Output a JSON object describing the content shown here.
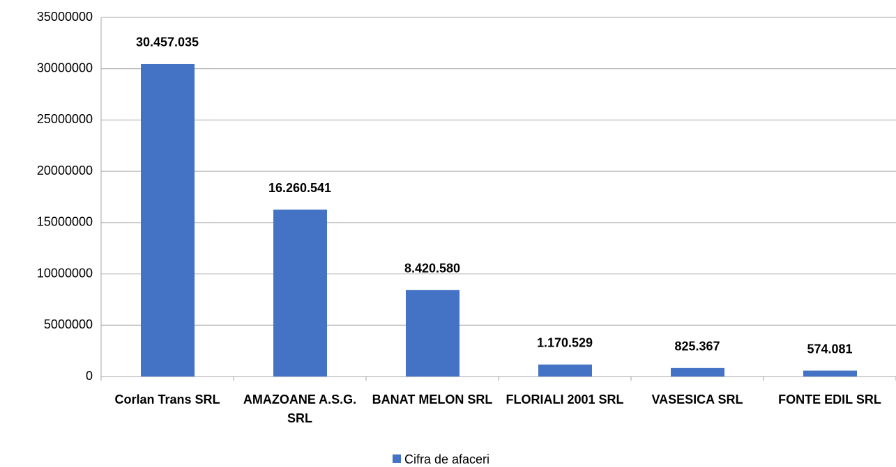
{
  "chart_data": {
    "type": "bar",
    "categories": [
      "Corlan Trans SRL",
      "AMAZOANE A.S.G. SRL",
      "BANAT MELON SRL",
      "FLORIALI 2001 SRL",
      "VASESICA SRL",
      "FONTE EDIL SRL"
    ],
    "series": [
      {
        "name": "Cifra de afaceri",
        "color": "#4472c4",
        "values": [
          30457035,
          16260541,
          8420580,
          1170529,
          825367,
          574081
        ],
        "value_labels": [
          "30.457.035",
          "16.260.541",
          "8.420.580",
          "1.170.529",
          "825.367",
          "574.081"
        ]
      }
    ],
    "ylim": [
      0,
      35000000
    ],
    "yticks": [
      0,
      5000000,
      10000000,
      15000000,
      20000000,
      25000000,
      30000000,
      35000000
    ],
    "grid": true,
    "legend": "bottom"
  }
}
